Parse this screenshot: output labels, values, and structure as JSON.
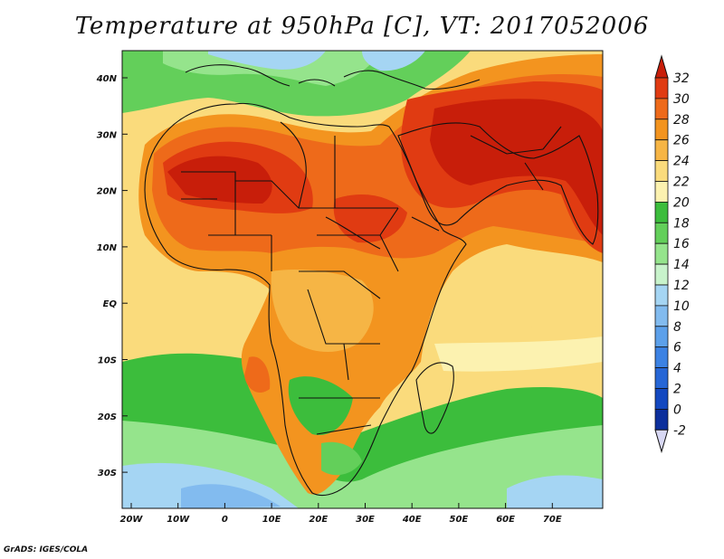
{
  "title": "Temperature at 950hPa [C], VT: 2017052006",
  "credit": "GrADS: IGES/COLA",
  "map": {
    "x_ticks": [
      "20W",
      "10W",
      "0",
      "10E",
      "20E",
      "30E",
      "40E",
      "50E",
      "60E",
      "70E"
    ],
    "y_ticks": [
      "40N",
      "30N",
      "20N",
      "10N",
      "EQ",
      "10S",
      "20S",
      "30S"
    ]
  },
  "colorbar": {
    "ticks": [
      "32",
      "30",
      "28",
      "26",
      "24",
      "22",
      "20",
      "18",
      "16",
      "14",
      "12",
      "10",
      "8",
      "6",
      "4",
      "2",
      "0",
      "-2"
    ],
    "colors": [
      "#c81e0a",
      "#e03b12",
      "#ee6a1a",
      "#f3941f",
      "#f6b545",
      "#fadb7c",
      "#fcf2b0",
      "#3cbd3c",
      "#63cf5a",
      "#95e48c",
      "#c8f3cb",
      "#a5d5f3",
      "#82bbef",
      "#5ca0ea",
      "#3c82e3",
      "#2666d6",
      "#1348c0",
      "#0c2f9c",
      "#0a1f6c"
    ]
  }
}
